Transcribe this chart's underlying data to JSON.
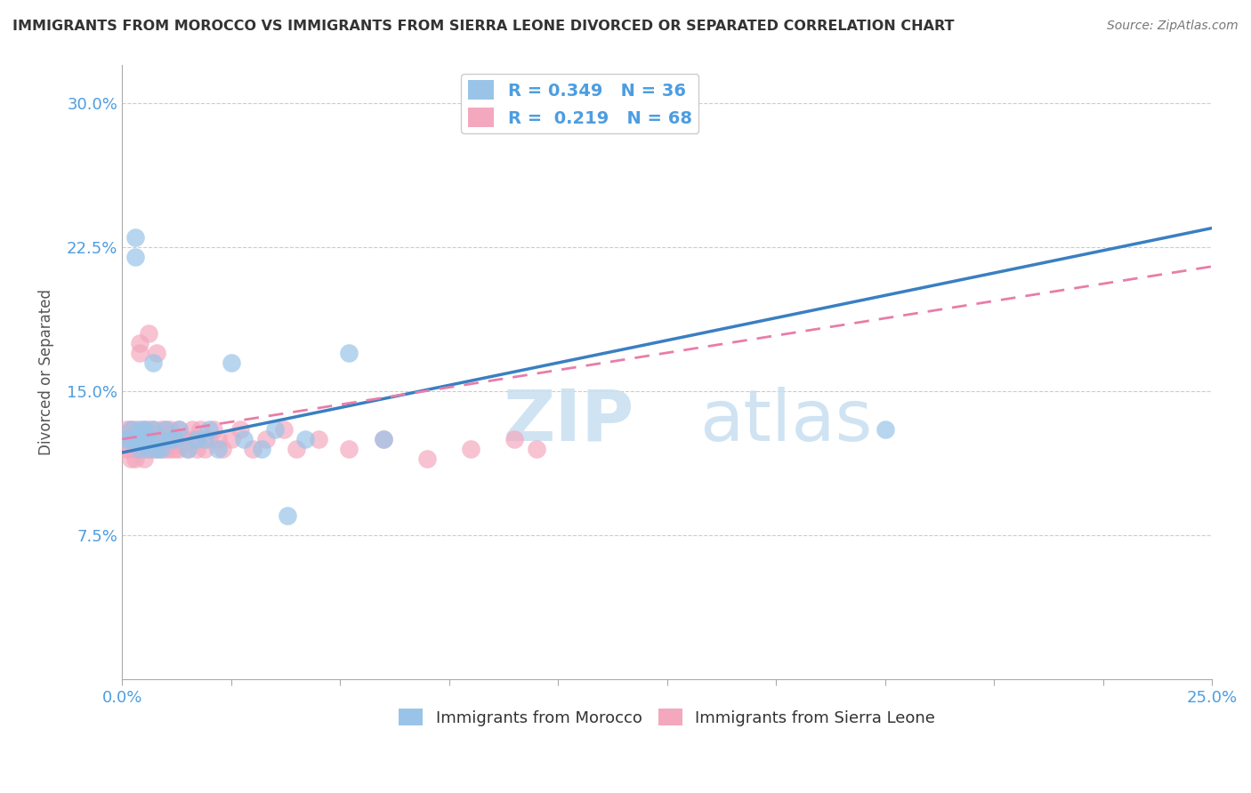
{
  "title": "IMMIGRANTS FROM MOROCCO VS IMMIGRANTS FROM SIERRA LEONE DIVORCED OR SEPARATED CORRELATION CHART",
  "source": "Source: ZipAtlas.com",
  "ylabel": "Divorced or Separated",
  "xlim": [
    0.0,
    0.25
  ],
  "ylim": [
    0.0,
    0.32
  ],
  "morocco_color": "#99c4e8",
  "sierra_leone_color": "#f4a8be",
  "morocco_R": 0.349,
  "morocco_N": 36,
  "sierra_leone_R": 0.219,
  "sierra_leone_N": 68,
  "legend_label_morocco": "Immigrants from Morocco",
  "legend_label_sierra": "Immigrants from Sierra Leone",
  "morocco_scatter_x": [
    0.001,
    0.002,
    0.002,
    0.003,
    0.003,
    0.003,
    0.004,
    0.004,
    0.004,
    0.005,
    0.005,
    0.006,
    0.006,
    0.007,
    0.007,
    0.008,
    0.008,
    0.009,
    0.01,
    0.011,
    0.012,
    0.013,
    0.015,
    0.017,
    0.019,
    0.02,
    0.022,
    0.025,
    0.028,
    0.032,
    0.035,
    0.038,
    0.042,
    0.052,
    0.06,
    0.175
  ],
  "morocco_scatter_y": [
    0.125,
    0.13,
    0.125,
    0.23,
    0.22,
    0.125,
    0.13,
    0.12,
    0.125,
    0.13,
    0.125,
    0.12,
    0.125,
    0.165,
    0.13,
    0.12,
    0.125,
    0.12,
    0.13,
    0.125,
    0.125,
    0.13,
    0.12,
    0.125,
    0.125,
    0.13,
    0.12,
    0.165,
    0.125,
    0.12,
    0.13,
    0.085,
    0.125,
    0.17,
    0.125,
    0.13
  ],
  "sierra_scatter_x": [
    0.001,
    0.001,
    0.001,
    0.002,
    0.002,
    0.002,
    0.002,
    0.002,
    0.003,
    0.003,
    0.003,
    0.003,
    0.003,
    0.004,
    0.004,
    0.004,
    0.004,
    0.005,
    0.005,
    0.005,
    0.005,
    0.006,
    0.006,
    0.006,
    0.006,
    0.007,
    0.007,
    0.007,
    0.008,
    0.008,
    0.008,
    0.009,
    0.009,
    0.009,
    0.01,
    0.01,
    0.01,
    0.011,
    0.011,
    0.012,
    0.012,
    0.013,
    0.013,
    0.014,
    0.015,
    0.016,
    0.016,
    0.017,
    0.017,
    0.018,
    0.019,
    0.02,
    0.021,
    0.022,
    0.023,
    0.025,
    0.027,
    0.03,
    0.033,
    0.037,
    0.04,
    0.045,
    0.052,
    0.06,
    0.07,
    0.08,
    0.09,
    0.095
  ],
  "sierra_scatter_y": [
    0.12,
    0.125,
    0.13,
    0.12,
    0.125,
    0.115,
    0.125,
    0.13,
    0.12,
    0.125,
    0.115,
    0.125,
    0.13,
    0.12,
    0.17,
    0.175,
    0.125,
    0.12,
    0.13,
    0.115,
    0.125,
    0.13,
    0.12,
    0.18,
    0.125,
    0.12,
    0.13,
    0.125,
    0.17,
    0.125,
    0.12,
    0.13,
    0.12,
    0.125,
    0.13,
    0.12,
    0.125,
    0.12,
    0.13,
    0.12,
    0.125,
    0.12,
    0.13,
    0.125,
    0.12,
    0.125,
    0.13,
    0.12,
    0.125,
    0.13,
    0.12,
    0.125,
    0.13,
    0.125,
    0.12,
    0.125,
    0.13,
    0.12,
    0.125,
    0.13,
    0.12,
    0.125,
    0.12,
    0.125,
    0.115,
    0.12,
    0.125,
    0.12
  ],
  "morocco_line_x0": 0.0,
  "morocco_line_y0": 0.118,
  "morocco_line_x1": 0.25,
  "morocco_line_y1": 0.235,
  "sierra_line_x0": 0.0,
  "sierra_line_y0": 0.125,
  "sierra_line_x1": 0.25,
  "sierra_line_y1": 0.215,
  "watermark_zip": "ZIP",
  "watermark_atlas": "atlas",
  "background_color": "#ffffff",
  "grid_color": "#cccccc",
  "title_color": "#333333",
  "tick_color": "#4d9de0",
  "morocco_line_color": "#3a7fc1",
  "sierra_line_color": "#e87da8"
}
